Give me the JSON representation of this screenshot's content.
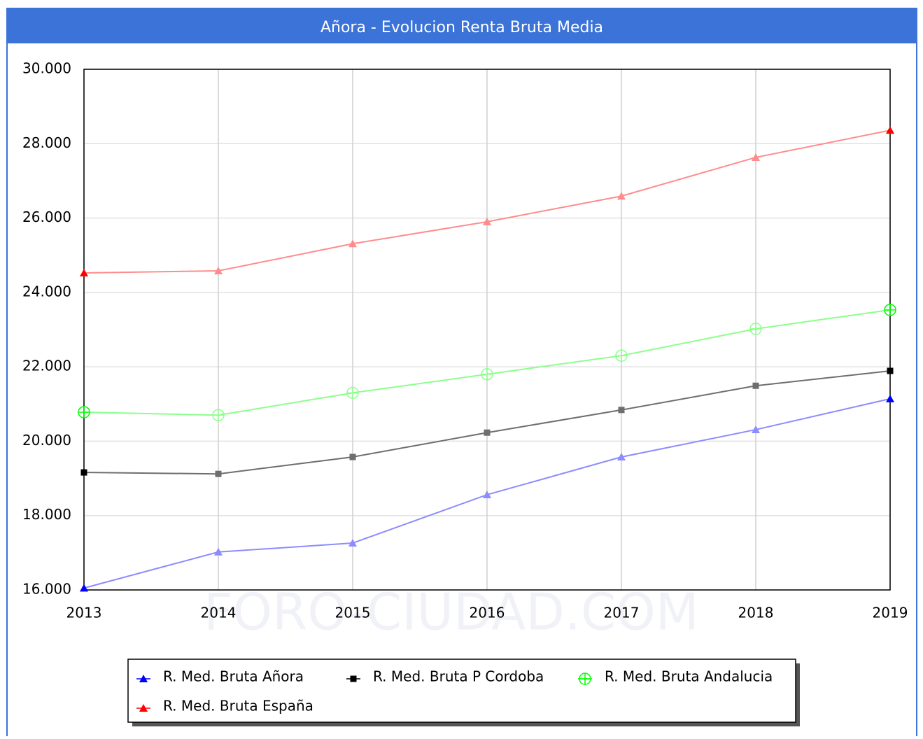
{
  "chart_data": {
    "type": "line",
    "title": "Añora - Evolucion Renta Bruta Media",
    "watermark": "FORO-CIUDAD.COM",
    "categories": [
      "2013",
      "2014",
      "2015",
      "2016",
      "2017",
      "2018",
      "2019"
    ],
    "series": [
      {
        "name": "R. Med. Bruta Añora",
        "color": "#0000ff",
        "line_color": "#8c8cff",
        "marker": "triangle",
        "values": [
          16050,
          17020,
          17260,
          18560,
          19575,
          20310,
          21140
        ]
      },
      {
        "name": "R. Med. Bruta P Cordoba",
        "color": "#000000",
        "line_color": "#6e6e6e",
        "marker": "square",
        "values": [
          19160,
          19120,
          19575,
          20230,
          20840,
          21490,
          21890
        ]
      },
      {
        "name": "R. Med. Bruta Andalucia",
        "color": "#00ff00",
        "line_color": "#8cff8c",
        "marker": "circle",
        "values": [
          20780,
          20700,
          21300,
          21800,
          22300,
          23020,
          23530
        ]
      },
      {
        "name": "R. Med. Bruta España",
        "color": "#ff0000",
        "line_color": "#ff8c8c",
        "marker": "triangle",
        "values": [
          24525,
          24580,
          25310,
          25900,
          26590,
          27630,
          28360
        ]
      }
    ],
    "ylim": [
      16000,
      30000
    ],
    "yticks": [
      {
        "value": 16000,
        "label": "16.000"
      },
      {
        "value": 18000,
        "label": "18.000"
      },
      {
        "value": 20000,
        "label": "20.000"
      },
      {
        "value": 22000,
        "label": "22.000"
      },
      {
        "value": 24000,
        "label": "24.000"
      },
      {
        "value": 26000,
        "label": "26.000"
      },
      {
        "value": 28000,
        "label": "28.000"
      },
      {
        "value": 30000,
        "label": "30.000"
      }
    ],
    "grid": true
  }
}
